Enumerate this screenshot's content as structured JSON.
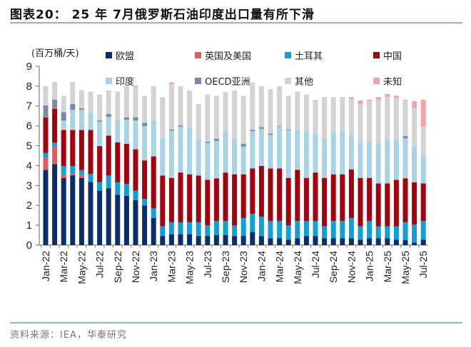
{
  "header": {
    "title": "图表20： 25 年 7月俄罗斯石油印度出口量有所下滑"
  },
  "footer": {
    "source": "资料来源：IEA，华泰研究"
  },
  "chart_data": {
    "type": "bar",
    "stacked": true,
    "title": "25 年 7月俄罗斯石油印度出口量有所下滑",
    "ylabel": "(百万桶/天)",
    "xlabel": "",
    "ylim": [
      0,
      9
    ],
    "yticks": [
      0,
      1,
      2,
      3,
      4,
      5,
      6,
      7,
      8,
      9
    ],
    "grid": false,
    "legend_position": "top",
    "categories": [
      "Jan-22",
      "Feb-22",
      "Mar-22",
      "Apr-22",
      "May-22",
      "Jun-22",
      "Jul-22",
      "Aug-22",
      "Sep-22",
      "Oct-22",
      "Nov-22",
      "Dec-22",
      "Jan-23",
      "Feb-23",
      "Mar-23",
      "Apr-23",
      "May-23",
      "Jun-23",
      "Jul-23",
      "Aug-23",
      "Sep-23",
      "Oct-23",
      "Nov-23",
      "Dec-23",
      "Jan-24",
      "Feb-24",
      "Mar-24",
      "Apr-24",
      "May-24",
      "Jun-24",
      "Jul-24",
      "Aug-24",
      "Sep-24",
      "Oct-24",
      "Nov-24",
      "Dec-24",
      "Jan-25",
      "Feb-25",
      "Mar-25",
      "Apr-25",
      "May-25",
      "Jun-25",
      "Jul-25"
    ],
    "xtick_labels": [
      "Jan-22",
      "Mar-22",
      "May-22",
      "Jul-22",
      "Sep-22",
      "Nov-22",
      "Jan-23",
      "Mar-23",
      "May-23",
      "Jul-23",
      "Sep-23",
      "Nov-23",
      "Jan-24",
      "Mar-24",
      "May-24",
      "Jul-24",
      "Sep-24",
      "Nov-24",
      "Jan-25",
      "Mar-25",
      "May-25",
      "Jul-25"
    ],
    "series": [
      {
        "name": "欧盟",
        "color": "#0b2e6b",
        "values": [
          3.78,
          4.07,
          3.37,
          3.51,
          3.37,
          3.17,
          2.74,
          2.86,
          2.54,
          2.48,
          2.26,
          1.99,
          1.37,
          0.46,
          0.55,
          0.55,
          0.55,
          0.46,
          0.46,
          0.51,
          0.51,
          0.46,
          0.46,
          0.67,
          0.46,
          0.34,
          0.34,
          0.27,
          0.34,
          0.46,
          0.46,
          0.34,
          0.34,
          0.34,
          0.34,
          0.27,
          0.34,
          0.34,
          0.34,
          0.27,
          0.25,
          0.13,
          0.27
        ]
      },
      {
        "name": "英国及美国",
        "color": "#e8585e",
        "values": [
          0.62,
          0.88,
          0.19,
          0.07,
          0.15,
          0,
          0,
          0,
          0,
          0,
          0,
          0,
          0,
          0,
          0,
          0,
          0,
          0,
          0,
          0,
          0,
          0,
          0,
          0,
          0,
          0,
          0,
          0,
          0,
          0,
          0,
          0,
          0,
          0,
          0,
          0,
          0,
          0,
          0,
          0,
          0,
          0,
          0
        ]
      },
      {
        "name": "土耳其",
        "color": "#129fd8",
        "values": [
          0.23,
          0.2,
          0.42,
          0.4,
          0.26,
          0.41,
          0.43,
          0.64,
          0.62,
          0.6,
          0.48,
          0.34,
          0.48,
          0.49,
          0.6,
          0.6,
          0.6,
          0.69,
          0.53,
          0.7,
          0.7,
          0.53,
          0.9,
          0.9,
          0.97,
          0.87,
          0.87,
          0.72,
          0.87,
          0.75,
          0.75,
          0.61,
          0.87,
          0.87,
          1.02,
          0.68,
          0.87,
          0.61,
          0.61,
          0.68,
          0.9,
          0.9,
          0.94
        ]
      },
      {
        "name": "中国",
        "color": "#a3030f",
        "values": [
          1.8,
          1.72,
          1.81,
          1.81,
          2.01,
          2.21,
          1.81,
          2.01,
          2.01,
          2.01,
          2.08,
          1.93,
          2.61,
          2.55,
          2.23,
          2.5,
          2.41,
          2.35,
          2.29,
          2.15,
          2.44,
          2.57,
          2.2,
          2.29,
          2.55,
          2.65,
          2.65,
          2.39,
          2.58,
          2.17,
          2.44,
          2.43,
          2.35,
          2.35,
          2.45,
          2.43,
          2.17,
          2.15,
          2.15,
          2.33,
          2.21,
          2.13,
          1.89
        ]
      },
      {
        "name": "印度",
        "color": "#a7d3e4",
        "values": [
          0.02,
          0.03,
          0.48,
          1.02,
          1.02,
          0.84,
          1.23,
          0.94,
          1.1,
          1.21,
          1.45,
          1.73,
          1.81,
          1.87,
          2.38,
          2.32,
          2.36,
          1.82,
          1.86,
          1.89,
          2.08,
          1.81,
          1.39,
          1.87,
          1.87,
          1.69,
          2.11,
          2.4,
          2.0,
          2.35,
          1.93,
          1.99,
          2.13,
          2.13,
          1.74,
          1.76,
          1.84,
          2.04,
          2.19,
          2.01,
          2.01,
          1.79,
          1.39
        ]
      },
      {
        "name": "OECD亚洲",
        "color": "#7b89a8",
        "values": [
          0.58,
          0.42,
          0.42,
          0.29,
          0.07,
          0,
          0.06,
          0.15,
          0,
          0.13,
          0.16,
          0.16,
          0,
          0,
          0.06,
          0.06,
          0,
          0,
          0.06,
          0.1,
          0,
          0,
          0.14,
          0.07,
          0.09,
          0.06,
          0.03,
          0.04,
          0,
          0,
          0,
          0,
          0,
          0,
          0,
          0,
          0,
          0,
          0,
          0,
          0.12,
          0,
          0
        ]
      },
      {
        "name": "其他",
        "color": "#d3d3d3",
        "values": [
          0.97,
          0.88,
          0.82,
          1.1,
          0.92,
          1.09,
          1.31,
          1.18,
          1.45,
          1.57,
          1.53,
          1.36,
          1.73,
          2.08,
          2.28,
          1.97,
          1.86,
          1.78,
          2.38,
          2.16,
          1.98,
          2.41,
          2.42,
          2.38,
          2.06,
          2.24,
          2.0,
          1.69,
          1.93,
          1.85,
          1.73,
          2.08,
          1.76,
          1.76,
          1.82,
          1.96,
          2.01,
          2.17,
          2.17,
          2.1,
          1.78,
          1.93,
          1.48
        ]
      },
      {
        "name": "未知",
        "color": "#f6a2a6",
        "values": [
          0,
          0,
          0,
          0,
          0,
          0,
          0,
          0,
          0,
          0,
          0.06,
          0,
          0,
          0,
          0.08,
          0,
          0,
          0,
          0,
          0,
          0,
          0,
          0,
          0,
          0,
          0,
          0,
          0,
          0,
          0,
          0,
          0,
          0,
          0,
          0.08,
          0.17,
          0.08,
          0.14,
          0.14,
          0.12,
          0.04,
          0.36,
          1.34
        ]
      }
    ]
  }
}
